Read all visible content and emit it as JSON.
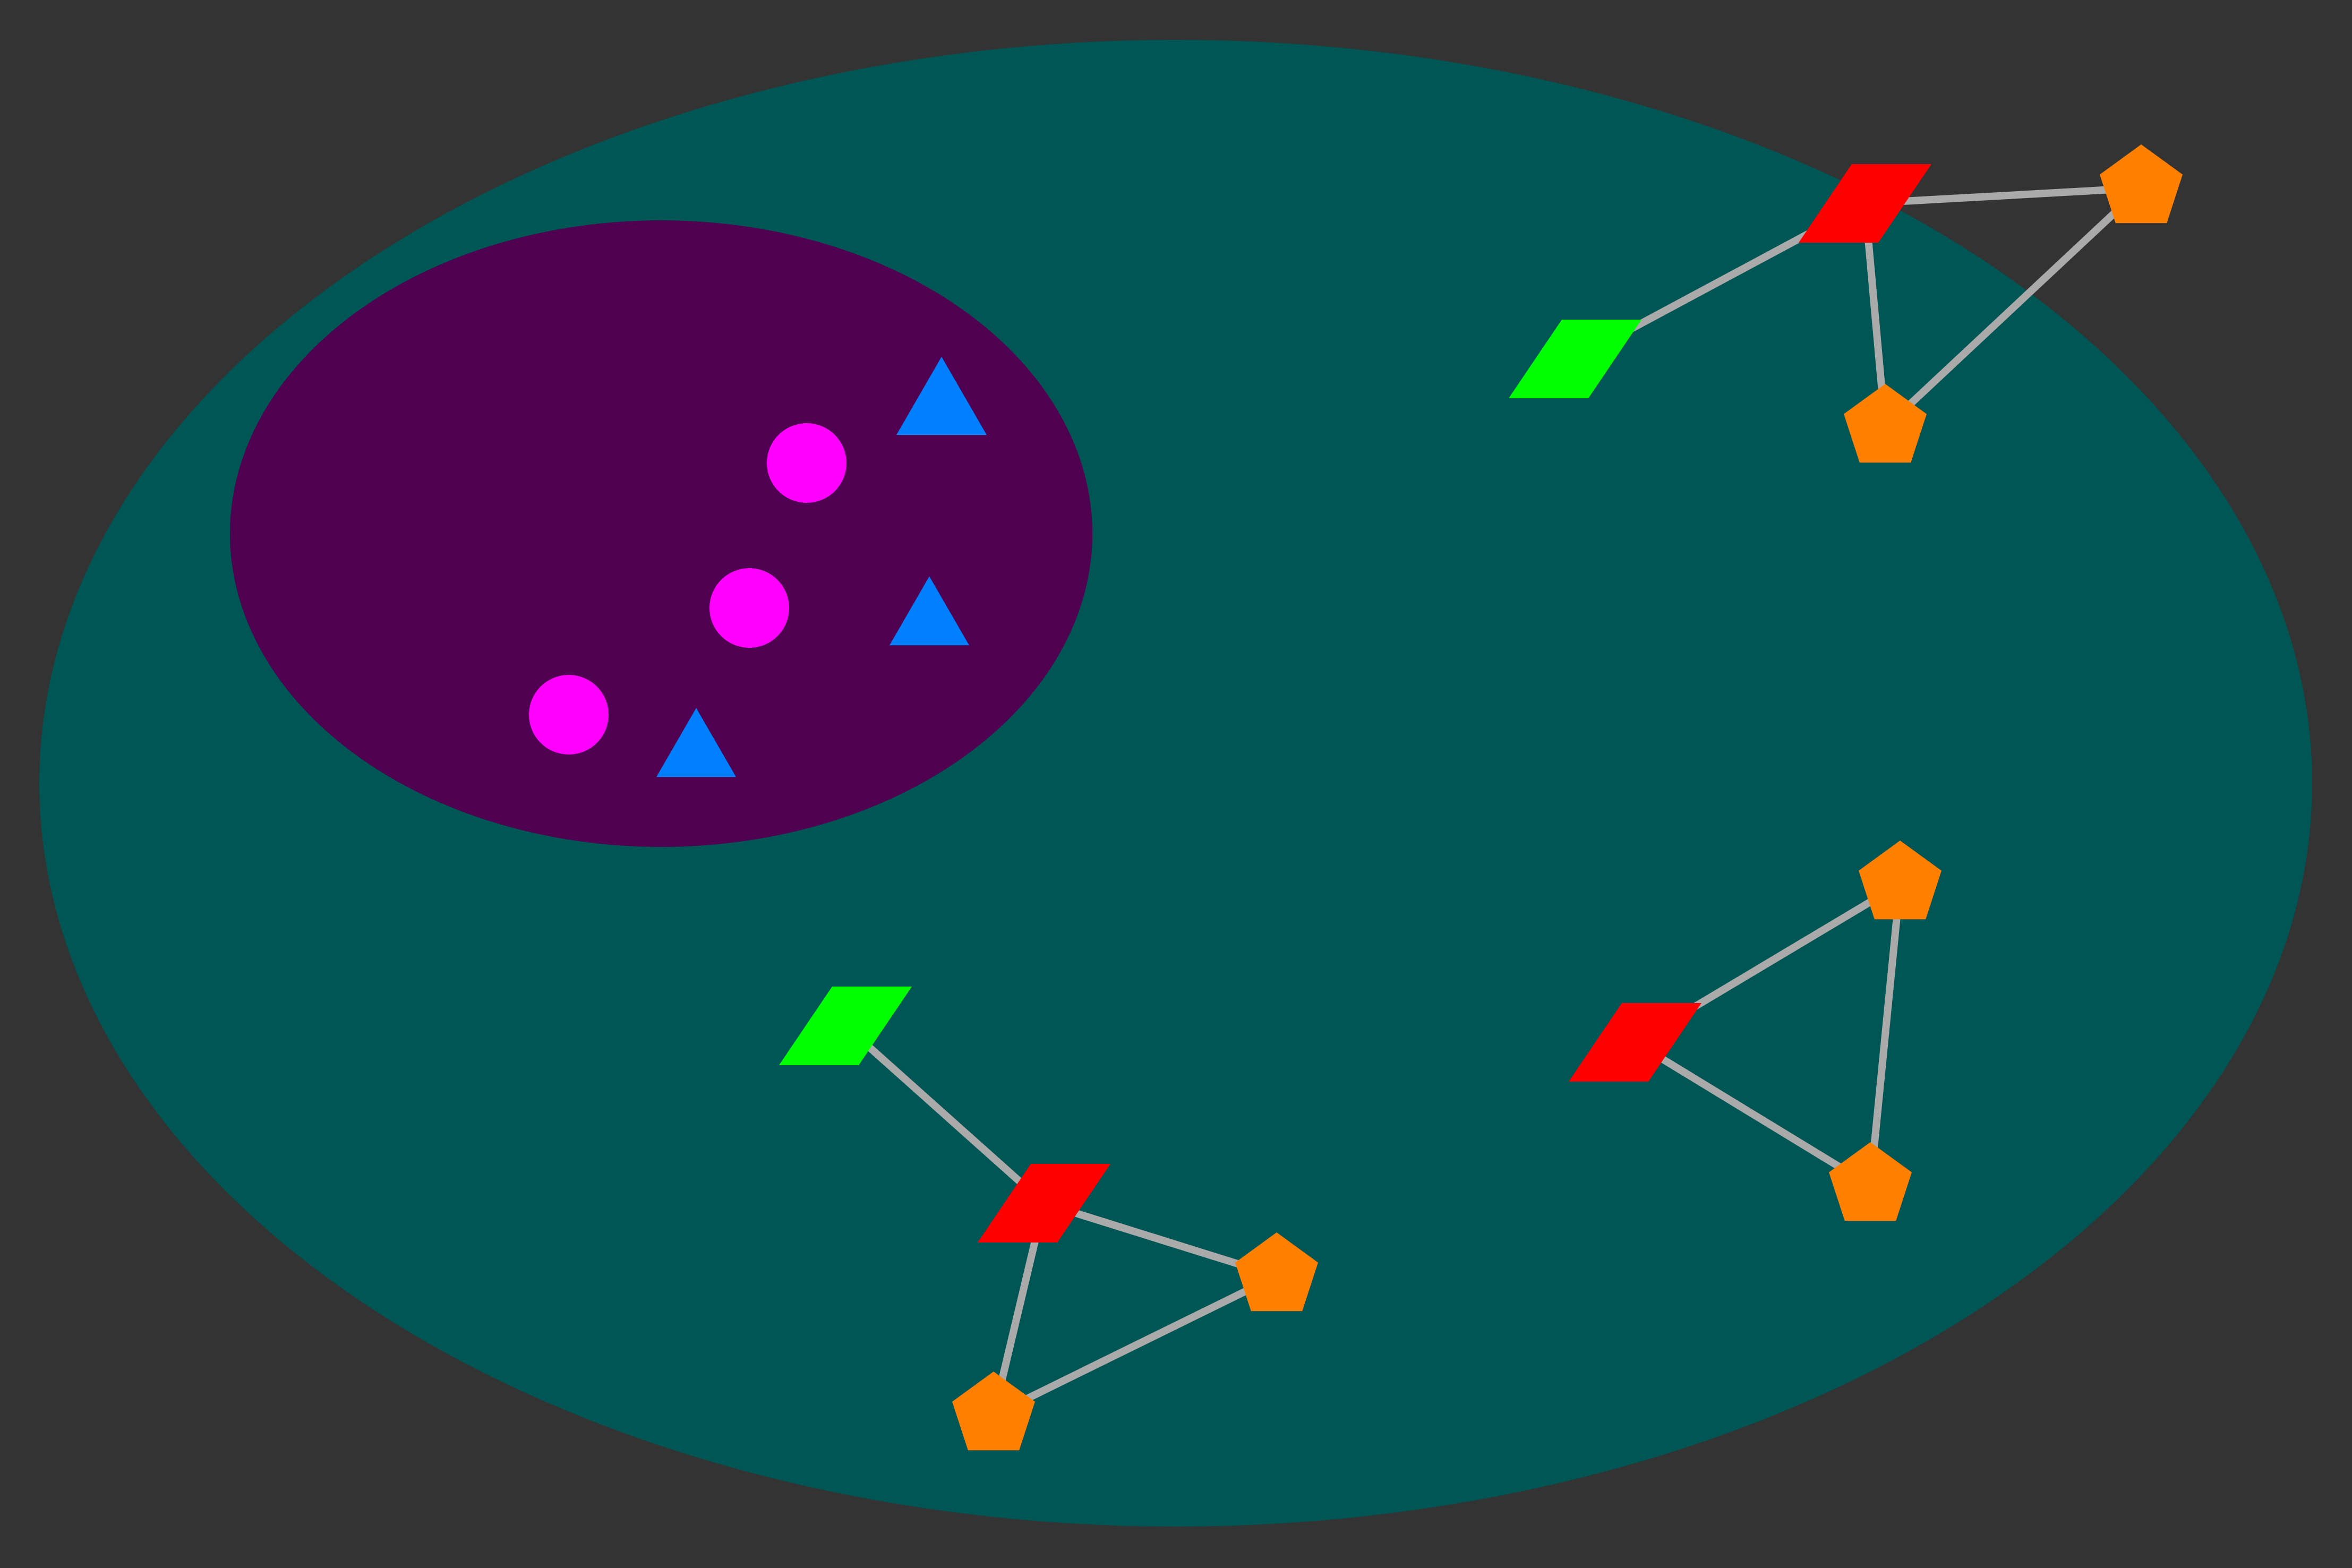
{
  "colors": {
    "background": "#333333",
    "outer_region": "#005555",
    "inner_region": "#500050",
    "edge": "#aaaaaa",
    "circle": "#ff00ff",
    "triangle": "#0080ff",
    "red_parallelogram": "#ff0000",
    "green_parallelogram": "#00ff00",
    "pentagon": "#ff8000"
  },
  "legend": {
    "circle": "circle-icon",
    "triangle": "triangle-icon",
    "parallelogram": "parallelogram-icon",
    "pentagon": "pentagon-icon"
  },
  "clusters": [
    {
      "name": "cluster-top-right",
      "nodes": [
        {
          "id": "tr-red",
          "shape": "parallelogram",
          "color": "red_parallelogram"
        },
        {
          "id": "tr-green",
          "shape": "parallelogram",
          "color": "green_parallelogram"
        },
        {
          "id": "tr-pent-a",
          "shape": "pentagon",
          "color": "pentagon"
        },
        {
          "id": "tr-pent-b",
          "shape": "pentagon",
          "color": "pentagon"
        }
      ],
      "edges": [
        [
          "tr-red",
          "tr-green"
        ],
        [
          "tr-red",
          "tr-pent-a"
        ],
        [
          "tr-red",
          "tr-pent-b"
        ],
        [
          "tr-pent-a",
          "tr-pent-b"
        ]
      ]
    },
    {
      "name": "cluster-bottom-left",
      "nodes": [
        {
          "id": "bl-green",
          "shape": "parallelogram",
          "color": "green_parallelogram"
        },
        {
          "id": "bl-red",
          "shape": "parallelogram",
          "color": "red_parallelogram"
        },
        {
          "id": "bl-pent-a",
          "shape": "pentagon",
          "color": "pentagon"
        },
        {
          "id": "bl-pent-b",
          "shape": "pentagon",
          "color": "pentagon"
        }
      ],
      "edges": [
        [
          "bl-green",
          "bl-red"
        ],
        [
          "bl-red",
          "bl-pent-a"
        ],
        [
          "bl-red",
          "bl-pent-b"
        ],
        [
          "bl-pent-a",
          "bl-pent-b"
        ]
      ]
    },
    {
      "name": "cluster-bottom-right",
      "nodes": [
        {
          "id": "br-red",
          "shape": "parallelogram",
          "color": "red_parallelogram"
        },
        {
          "id": "br-pent-a",
          "shape": "pentagon",
          "color": "pentagon"
        },
        {
          "id": "br-pent-b",
          "shape": "pentagon",
          "color": "pentagon"
        }
      ],
      "edges": [
        [
          "br-red",
          "br-pent-a"
        ],
        [
          "br-red",
          "br-pent-b"
        ],
        [
          "br-pent-a",
          "br-pent-b"
        ]
      ]
    }
  ],
  "inner_group": {
    "circles": 3,
    "triangles": 3
  }
}
